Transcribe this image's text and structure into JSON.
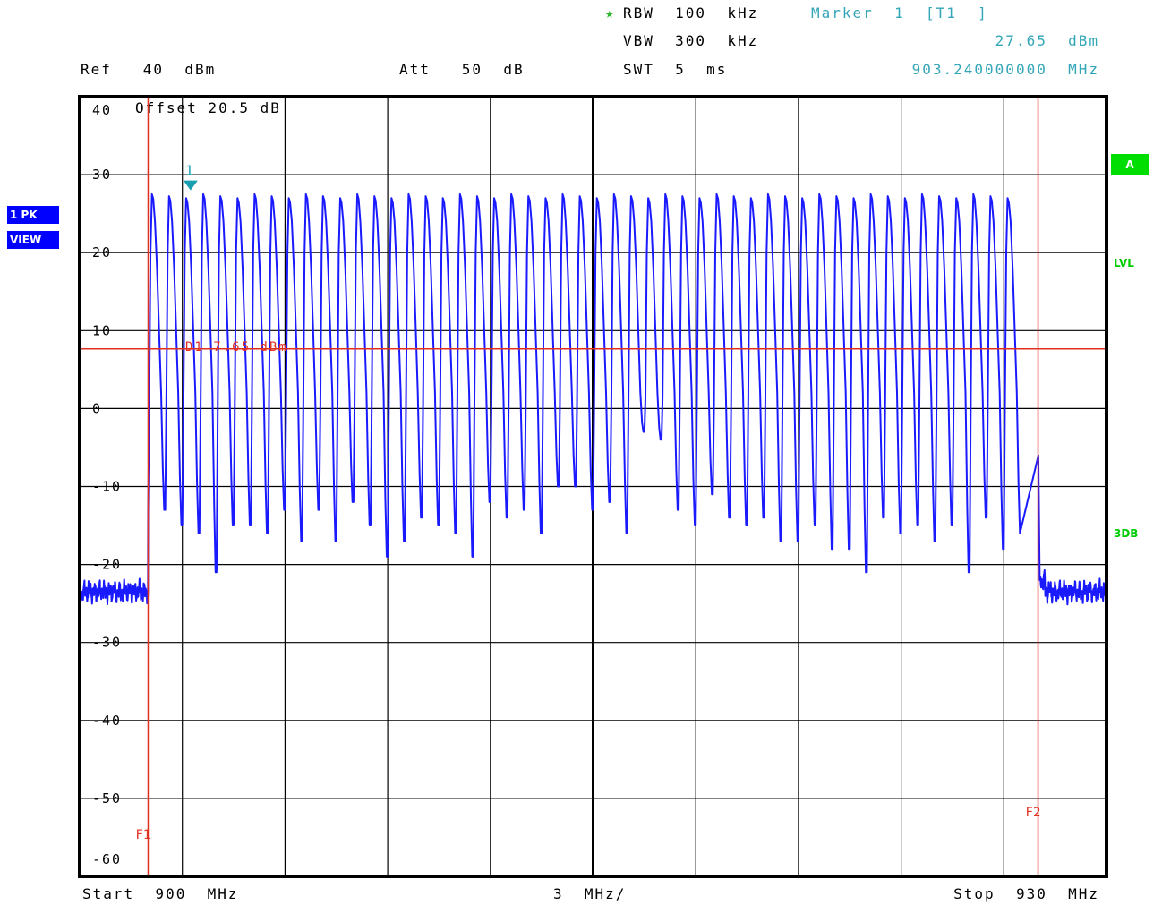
{
  "header": {
    "rbw_star": "★",
    "rbw": "RBW  100  kHz",
    "marker_title": "Marker  1  [T1  ]",
    "vbw": "VBW  300  kHz",
    "marker_level": "27.65  dBm",
    "ref": "Ref   40  dBm",
    "att": "Att   50  dB",
    "swt": "SWT  5  ms",
    "marker_freq": "903.240000000  MHz"
  },
  "side": {
    "trace_label": "1  PK",
    "view_label": "VIEW",
    "a_badge": "A",
    "lvl": "LVL",
    "db3": "3DB"
  },
  "footer": {
    "start": "Start  900  MHz",
    "div": "3  MHz/",
    "stop": "Stop  930  MHz"
  },
  "colors": {
    "trace": "#1a1aff",
    "lines": "#e03020",
    "marker": "#1a9fb0",
    "grid": "#000000"
  },
  "chart_data": {
    "type": "line",
    "title": "",
    "offset_label": "Offset   20.5  dB",
    "xlabel": "",
    "ylabel": "",
    "xlim": [
      900,
      930
    ],
    "ylim": [
      -60,
      40
    ],
    "y_ticks": [
      40,
      30,
      20,
      10,
      0,
      -10,
      -20,
      -30,
      -40,
      -50,
      -60
    ],
    "grid": true,
    "display_line": {
      "name": "D1",
      "label": "D1  7.65  dBm",
      "value": 7.65
    },
    "frequency_lines": [
      {
        "name": "F1",
        "x": 902.0
      },
      {
        "name": "F2",
        "x": 928.0
      }
    ],
    "marker": {
      "label": "1",
      "x": 903.24,
      "y": 27.65
    },
    "noise_floor_left": -23.5,
    "noise_floor_right": -23.5,
    "channels": {
      "first_center_mhz": 902.25,
      "spacing_mhz": 0.5,
      "count": 51,
      "peak_dbm": 27.5,
      "valley_dbm": [
        -13,
        -15,
        -16,
        -21,
        -15,
        -15,
        -16,
        -13,
        -17,
        -13,
        -17,
        -12,
        -15,
        -19,
        -17,
        -14,
        -15,
        -16,
        -19,
        -12,
        -14,
        -13,
        -16,
        -10,
        -10,
        -13,
        -12,
        -16,
        -3,
        -4,
        -13,
        -15,
        -11,
        -14,
        -15,
        -14,
        -17,
        -17,
        -15,
        -18,
        -18,
        -21,
        -14,
        -16,
        -15,
        -17,
        -15,
        -21,
        -14,
        -18,
        -16
      ]
    }
  }
}
